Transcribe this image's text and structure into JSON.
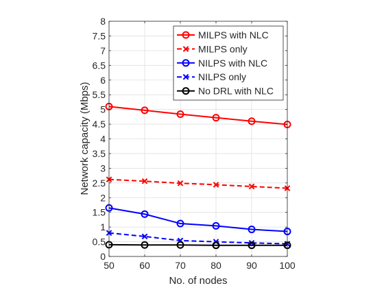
{
  "chart_data": {
    "type": "line",
    "title": "",
    "xlabel": "No. of nodes",
    "ylabel": "Network capacity (Mbps)",
    "x": [
      50,
      60,
      70,
      80,
      90,
      100
    ],
    "xlim": [
      50,
      100
    ],
    "ylim": [
      0,
      8
    ],
    "xticks": [
      50,
      60,
      70,
      80,
      90,
      100
    ],
    "yticks": [
      0,
      0.5,
      1,
      1.5,
      2,
      2.5,
      3,
      3.5,
      4,
      4.5,
      5,
      5.5,
      6,
      6.5,
      7,
      7.5,
      8
    ],
    "grid": true,
    "legend_position": "top-right",
    "series": [
      {
        "name": "MILPS with NLC",
        "color": "#ff0000",
        "line": "solid",
        "marker": "circle",
        "values": [
          5.1,
          4.97,
          4.84,
          4.72,
          4.6,
          4.49
        ]
      },
      {
        "name": "MILPS only",
        "color": "#ff0000",
        "line": "dashed",
        "marker": "x",
        "values": [
          2.62,
          2.56,
          2.49,
          2.44,
          2.38,
          2.32
        ]
      },
      {
        "name": "NILPS with NLC",
        "color": "#0000ff",
        "line": "solid",
        "marker": "circle",
        "values": [
          1.65,
          1.44,
          1.12,
          1.04,
          0.92,
          0.85
        ]
      },
      {
        "name": "NILPS only",
        "color": "#0000ff",
        "line": "dashed",
        "marker": "x",
        "values": [
          0.8,
          0.68,
          0.54,
          0.5,
          0.46,
          0.43
        ]
      },
      {
        "name": "No DRL with NLC",
        "color": "#000000",
        "line": "solid",
        "marker": "circle",
        "values": [
          0.4,
          0.39,
          0.39,
          0.38,
          0.38,
          0.38
        ]
      }
    ]
  }
}
